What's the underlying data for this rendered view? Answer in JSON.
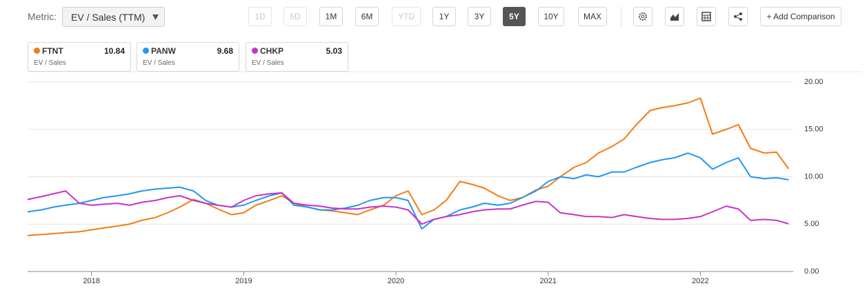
{
  "toolbar": {
    "metric_label": "Metric:",
    "metric_select": "EV / Sales (TTM)",
    "buttons": [
      "1D",
      "5D",
      "1M",
      "6M",
      "YTD",
      "1Y",
      "3Y",
      "5Y",
      "10Y",
      "MAX"
    ],
    "add_comparison": "+ Add Comparison"
  },
  "chart_data": {
    "type": "line",
    "metric": "EV / Sales",
    "x": [
      2017.58,
      2017.67,
      2017.75,
      2017.83,
      2017.92,
      2018.0,
      2018.08,
      2018.17,
      2018.25,
      2018.33,
      2018.42,
      2018.5,
      2018.58,
      2018.67,
      2018.75,
      2018.83,
      2018.92,
      2019.0,
      2019.08,
      2019.17,
      2019.25,
      2019.33,
      2019.42,
      2019.5,
      2019.58,
      2019.67,
      2019.75,
      2019.83,
      2019.92,
      2020.0,
      2020.08,
      2020.17,
      2020.25,
      2020.33,
      2020.42,
      2020.5,
      2020.58,
      2020.67,
      2020.75,
      2020.83,
      2020.92,
      2021.0,
      2021.08,
      2021.17,
      2021.25,
      2021.33,
      2021.42,
      2021.5,
      2021.58,
      2021.67,
      2021.75,
      2021.83,
      2021.92,
      2022.0,
      2022.08,
      2022.17,
      2022.25,
      2022.33,
      2022.42,
      2022.5,
      2022.58
    ],
    "series": [
      {
        "name": "FTNT",
        "color": "#f47b12",
        "latest": 10.84,
        "values": [
          3.8,
          3.9,
          4.0,
          4.1,
          4.2,
          4.4,
          4.6,
          4.8,
          5.0,
          5.4,
          5.7,
          6.2,
          6.8,
          7.6,
          7.2,
          6.6,
          6.0,
          6.2,
          7.0,
          7.5,
          8.0,
          7.2,
          6.8,
          6.5,
          6.4,
          6.2,
          6.0,
          6.5,
          7.0,
          8.0,
          8.5,
          6.0,
          6.5,
          7.5,
          9.5,
          9.2,
          8.8,
          8.0,
          7.5,
          7.8,
          8.6,
          9.0,
          10.0,
          11.0,
          11.5,
          12.5,
          13.2,
          14.0,
          15.5,
          17.0,
          17.3,
          17.5,
          17.8,
          18.3,
          14.5,
          15.0,
          15.5,
          13.0,
          12.5,
          12.6,
          10.84
        ]
      },
      {
        "name": "PANW",
        "color": "#2196f3",
        "latest": 9.68,
        "values": [
          6.3,
          6.5,
          6.8,
          7.0,
          7.2,
          7.5,
          7.8,
          8.0,
          8.2,
          8.5,
          8.7,
          8.8,
          8.9,
          8.5,
          7.5,
          7.0,
          6.8,
          7.0,
          7.5,
          8.0,
          8.3,
          7.0,
          6.8,
          6.5,
          6.5,
          6.7,
          7.0,
          7.5,
          7.8,
          7.8,
          7.5,
          4.5,
          5.5,
          5.8,
          6.5,
          6.8,
          7.2,
          7.0,
          7.2,
          7.8,
          8.5,
          9.5,
          10.0,
          9.8,
          10.2,
          10.0,
          10.5,
          10.5,
          11.0,
          11.5,
          11.8,
          12.0,
          12.5,
          12.0,
          10.8,
          11.5,
          12.0,
          10.0,
          9.8,
          9.9,
          9.68
        ]
      },
      {
        "name": "CHKP",
        "color": "#c931c9",
        "latest": 5.03,
        "values": [
          7.6,
          7.9,
          8.2,
          8.5,
          7.2,
          7.0,
          7.1,
          7.2,
          7.0,
          7.3,
          7.5,
          7.8,
          8.0,
          7.5,
          7.2,
          7.0,
          6.8,
          7.5,
          8.0,
          8.2,
          8.3,
          7.2,
          7.0,
          6.9,
          6.7,
          6.6,
          6.6,
          6.8,
          6.9,
          6.8,
          6.5,
          5.0,
          5.5,
          5.8,
          6.0,
          6.3,
          6.5,
          6.6,
          6.6,
          7.0,
          7.4,
          7.3,
          6.2,
          6.0,
          5.8,
          5.8,
          5.7,
          6.0,
          5.8,
          5.6,
          5.5,
          5.5,
          5.6,
          5.8,
          6.3,
          6.9,
          6.6,
          5.4,
          5.5,
          5.4,
          5.03
        ]
      }
    ],
    "xlim": [
      2017.58,
      2022.61
    ],
    "xticks": [
      2018,
      2019,
      2020,
      2021,
      2022
    ],
    "ylim": [
      0,
      20
    ],
    "yticks": [
      {
        "value": 0,
        "label": "0.00"
      },
      {
        "value": 5,
        "label": "5.00"
      },
      {
        "value": 10,
        "label": "10.00"
      },
      {
        "value": 15,
        "label": "15.00"
      },
      {
        "value": 20,
        "label": "20.00"
      }
    ],
    "grid": true
  }
}
